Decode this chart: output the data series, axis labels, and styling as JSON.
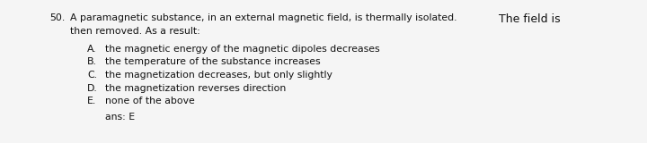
{
  "background_color": "#f5f5f5",
  "question_number": "50.",
  "question_line1_part1": "A paramagnetic substance, in an external magnetic field, is thermally isolated.",
  "question_line1_part2": "The field is",
  "question_line2": "then removed. As a result:",
  "options": [
    {
      "label": "A.",
      "text": "the magnetic energy of the magnetic dipoles decreases"
    },
    {
      "label": "B.",
      "text": "the temperature of the substance increases"
    },
    {
      "label": "C.",
      "text": "the magnetization decreases, but only slightly"
    },
    {
      "label": "D.",
      "text": "the magnetization reverses direction"
    },
    {
      "label": "E.",
      "text": "none of the above"
    }
  ],
  "answer_label": "ans:",
  "answer_value": "E",
  "font_color": "#111111",
  "font_family": "Courier New",
  "fontsize_q": 7.8,
  "fontsize_opt": 7.8,
  "fontsize_ans": 7.8,
  "the_fontsize": 9.5
}
